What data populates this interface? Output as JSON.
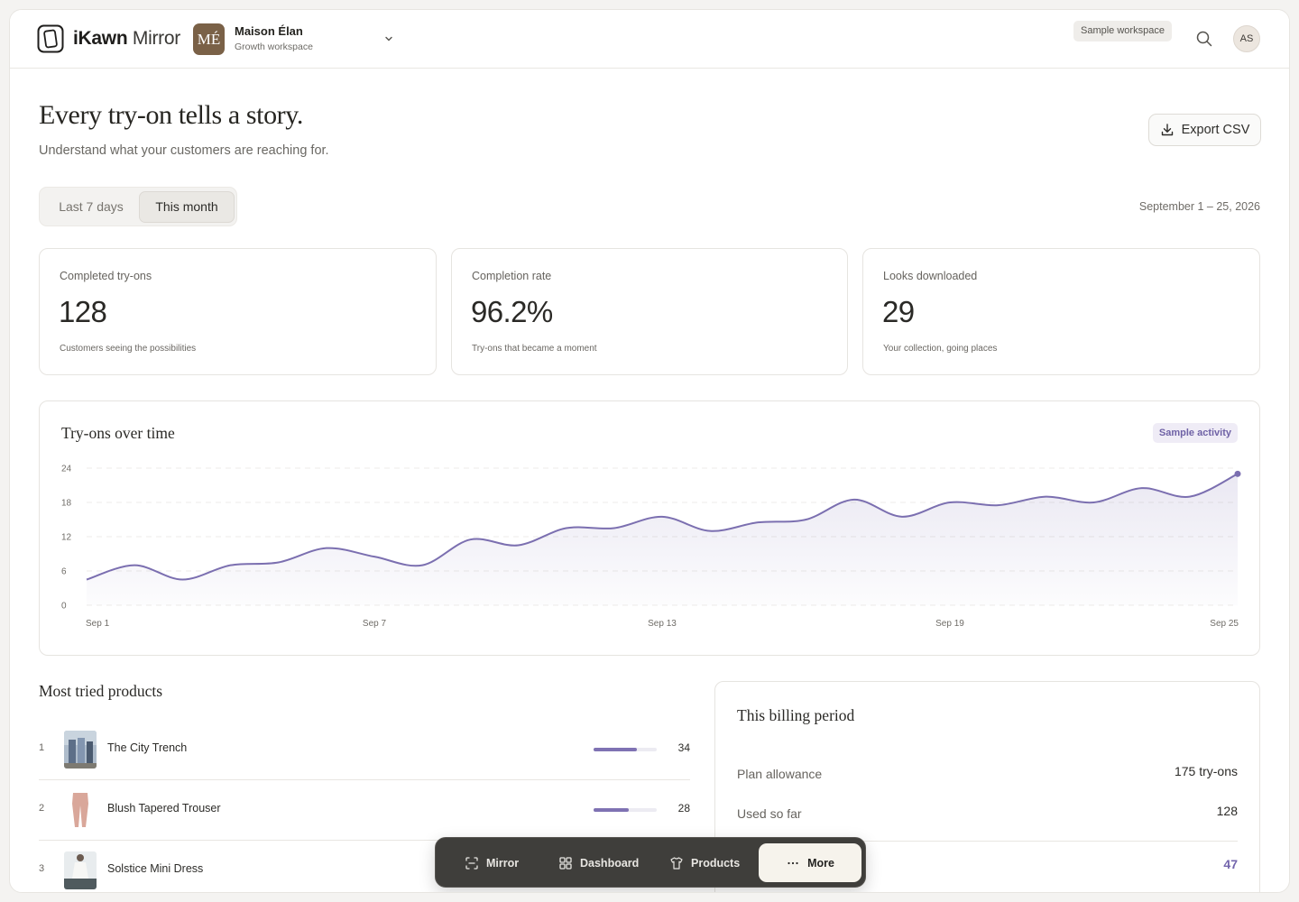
{
  "app": {
    "name_bold": "iKawn",
    "name_light": "Mirror"
  },
  "workspace": {
    "initials": "MÉ",
    "name": "Maison Élan",
    "plan": "Growth workspace",
    "badge": "Sample workspace"
  },
  "user": {
    "initials": "AS"
  },
  "hero": {
    "title": "Every try-on tells a story.",
    "subtitle": "Understand what your customers are reaching for.",
    "export_label": "Export CSV"
  },
  "range": {
    "options": [
      "Last 7 days",
      "This month"
    ],
    "selected": "This month",
    "date_range": "September 1 – 25, 2026"
  },
  "kpis": [
    {
      "label": "Completed try-ons",
      "value": "128",
      "caption": "Customers seeing the possibilities"
    },
    {
      "label": "Completion rate",
      "value": "96.2%",
      "caption": "Try-ons that became a moment"
    },
    {
      "label": "Looks downloaded",
      "value": "29",
      "caption": "Your collection, going places"
    }
  ],
  "chart": {
    "title": "Try-ons over time",
    "badge": "Sample activity"
  },
  "chart_data": {
    "type": "area",
    "title": "Try-ons over time",
    "xlabel": "",
    "ylabel": "",
    "ylim": [
      0,
      24
    ],
    "yticks": [
      0,
      6,
      12,
      18,
      24
    ],
    "xticks": [
      "Sep 1",
      "Sep 7",
      "Sep 13",
      "Sep 19",
      "Sep 25"
    ],
    "x": [
      1,
      2,
      3,
      4,
      5,
      6,
      7,
      8,
      9,
      10,
      11,
      12,
      13,
      14,
      15,
      16,
      17,
      18,
      19,
      20,
      21,
      22,
      23,
      24,
      25
    ],
    "values": [
      4.5,
      7,
      4.5,
      7,
      7.5,
      10,
      8.5,
      7,
      11.5,
      10.5,
      13.5,
      13.5,
      15.5,
      13,
      14.5,
      15,
      18.5,
      15.5,
      18,
      17.5,
      19,
      18,
      20.5,
      19,
      23
    ],
    "grid": true,
    "color": "#7b6fb0"
  },
  "products": {
    "title": "Most tried products",
    "items": [
      {
        "rank": "1",
        "name": "The City Trench",
        "count": 34,
        "count_label": "34"
      },
      {
        "rank": "2",
        "name": "Blush Tapered Trouser",
        "count": 28,
        "count_label": "28"
      },
      {
        "rank": "3",
        "name": "Solstice Mini Dress",
        "count": 0,
        "count_label": ""
      }
    ],
    "max_count": 50
  },
  "billing": {
    "title": "This billing period",
    "rows": [
      {
        "label": "Plan allowance",
        "value": "175 try-ons"
      },
      {
        "label": "Used so far",
        "value": "128"
      }
    ],
    "remaining": "47"
  },
  "nav": {
    "items": [
      {
        "label": "Mirror",
        "icon": "scan-icon"
      },
      {
        "label": "Dashboard",
        "icon": "grid-icon"
      },
      {
        "label": "Products",
        "icon": "shirt-icon"
      },
      {
        "label": "More",
        "icon": "ellipsis-icon",
        "active": true
      }
    ]
  }
}
